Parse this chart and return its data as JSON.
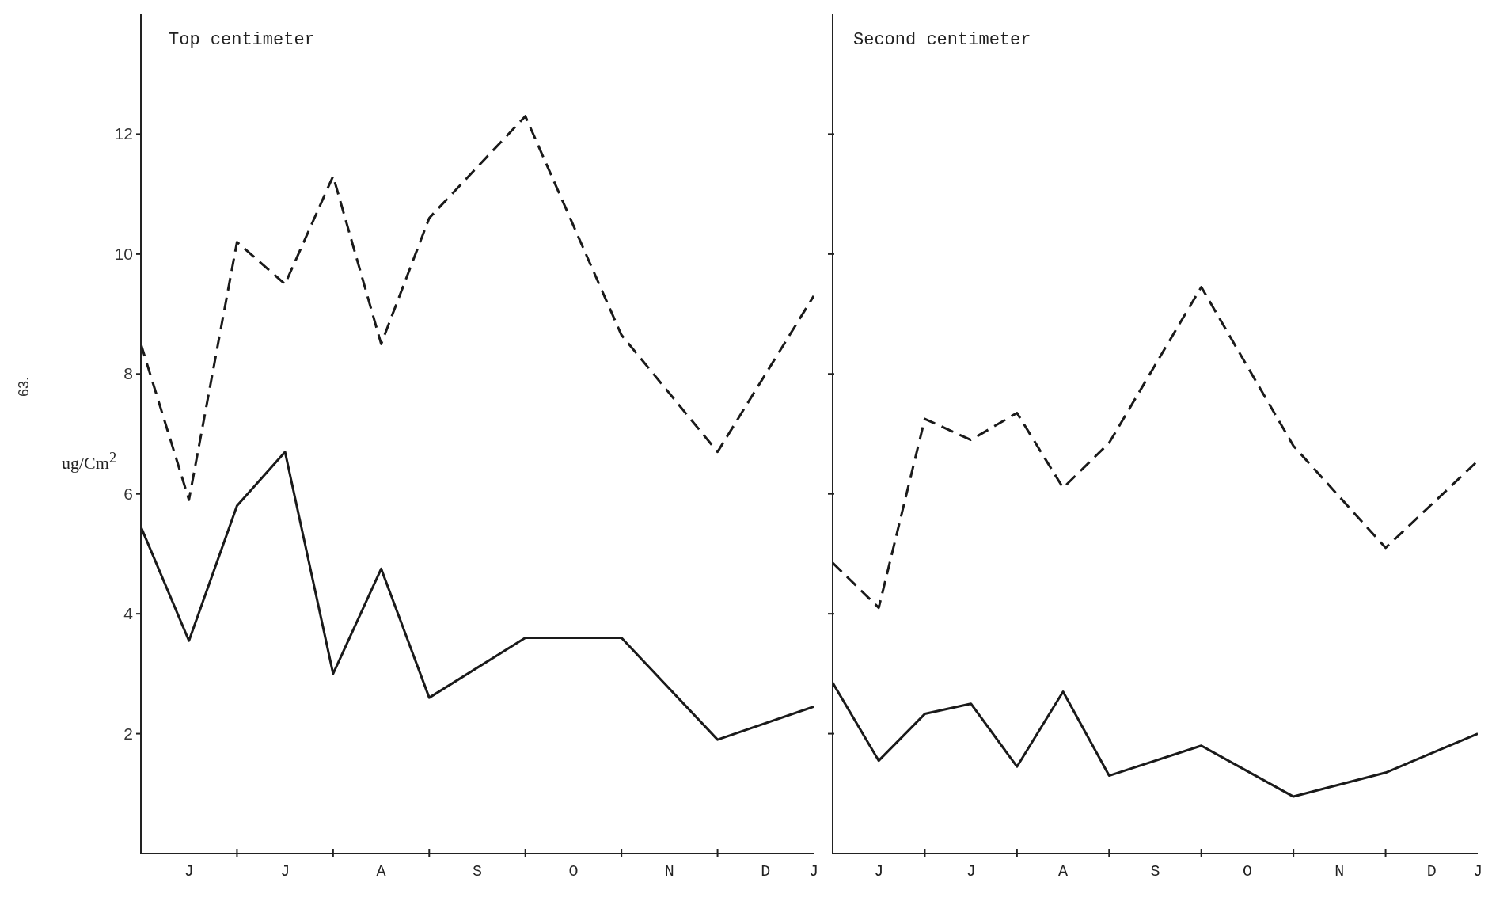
{
  "chart_data": [
    {
      "type": "line",
      "title": "Top centimeter",
      "ylabel": "ug/Cm$^{2}$",
      "annotations": [
        "63."
      ],
      "ylim": [
        0,
        14
      ],
      "categories": [
        null,
        "J",
        null,
        "J",
        null,
        "A",
        null,
        "S",
        null,
        "O",
        null,
        "N",
        null,
        "D",
        "J"
      ],
      "yticks": [
        2,
        4,
        6,
        8,
        10,
        12
      ],
      "grid": false,
      "legend": false,
      "marker": "none",
      "series": [
        {
          "color": "#1a1a1a",
          "line_style": "dashed",
          "values": [
            8.5,
            5.9,
            10.2,
            9.5,
            11.3,
            8.5,
            10.6,
            null,
            12.3,
            null,
            8.65,
            null,
            6.7,
            null,
            9.3
          ]
        },
        {
          "color": "#1a1a1a",
          "line_style": "solid",
          "values": [
            5.45,
            3.55,
            5.8,
            6.7,
            3.0,
            4.75,
            2.6,
            null,
            3.6,
            null,
            3.6,
            null,
            1.9,
            null,
            2.45
          ]
        }
      ]
    },
    {
      "type": "line",
      "title": "Second centimeter",
      "ylim": [
        0,
        14
      ],
      "tick_labels": "x",
      "categories": [
        null,
        "J",
        null,
        "J",
        null,
        "A",
        null,
        "S",
        null,
        "O",
        null,
        "N",
        null,
        "D",
        "J"
      ],
      "yticks": [
        2,
        4,
        6,
        8,
        10,
        12
      ],
      "grid": false,
      "legend": false,
      "marker": "none",
      "series": [
        {
          "color": "#1a1a1a",
          "line_style": "dashed",
          "values": [
            4.85,
            4.1,
            7.25,
            6.9,
            7.35,
            6.1,
            6.85,
            null,
            9.45,
            null,
            6.8,
            null,
            5.1,
            null,
            6.55
          ]
        },
        {
          "color": "#1a1a1a",
          "line_style": "solid",
          "values": [
            2.85,
            1.55,
            2.33,
            2.5,
            1.45,
            2.7,
            1.3,
            null,
            1.8,
            null,
            0.95,
            null,
            1.35,
            null,
            2.0
          ]
        }
      ]
    }
  ]
}
